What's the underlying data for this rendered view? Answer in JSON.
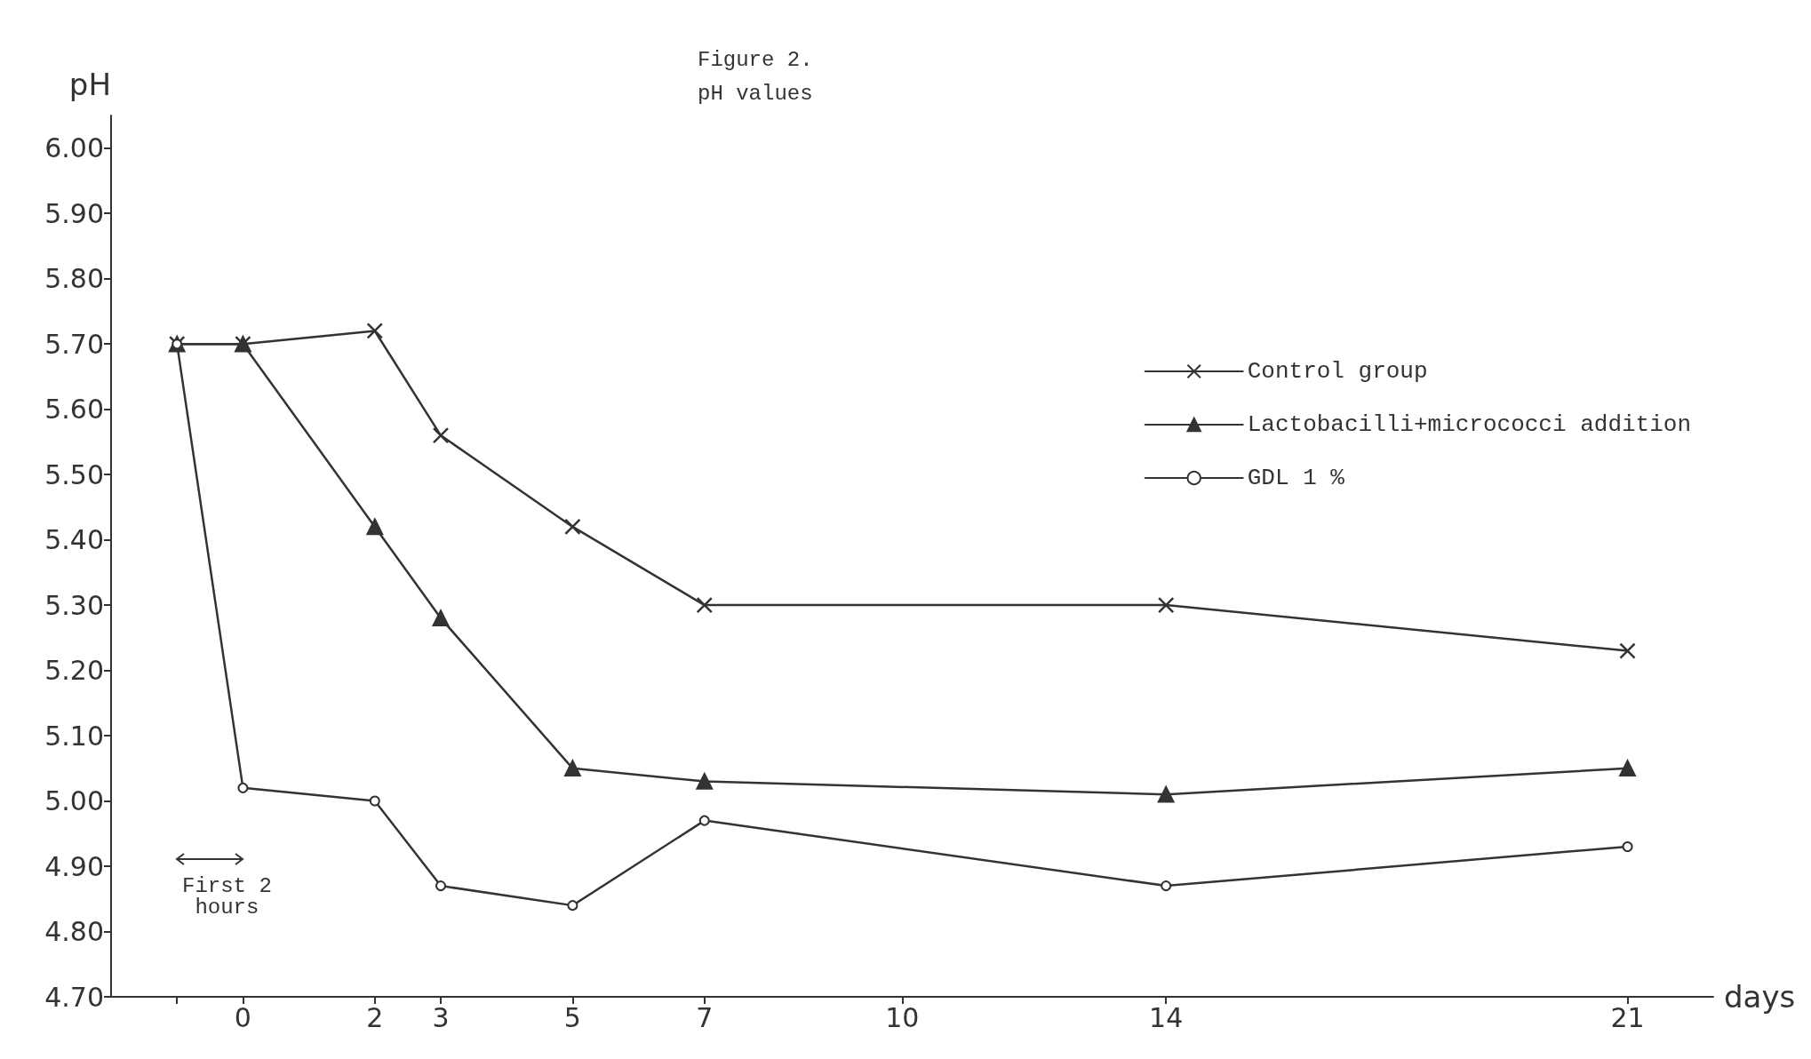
{
  "chart_data": {
    "type": "line",
    "title": "Figure 2.",
    "subtitle": "pH values",
    "xlabel": "days",
    "ylabel": "pH",
    "x": [
      -1,
      0,
      2,
      3,
      5,
      7,
      14,
      21
    ],
    "series": [
      {
        "name": "Control group",
        "color": "#333333",
        "marker": "cross",
        "values": [
          5.7,
          5.7,
          5.72,
          5.56,
          5.42,
          5.3,
          5.3,
          5.23
        ]
      },
      {
        "name": "Lactobacilli+micrococci addition",
        "color": "#333333",
        "marker": "triangle",
        "values": [
          5.7,
          5.7,
          5.42,
          5.28,
          5.05,
          5.03,
          5.01,
          5.05
        ]
      },
      {
        "name": "GDL 1 %",
        "color": "#333333",
        "marker": "circle",
        "values": [
          5.7,
          5.02,
          5.0,
          4.87,
          4.84,
          4.97,
          4.87,
          4.93
        ]
      }
    ],
    "xlim": [
      -2,
      22.3
    ],
    "xticks": [
      {
        "value": -1,
        "label": null
      },
      0,
      2,
      3,
      5,
      7,
      10,
      14,
      21
    ],
    "ylim": [
      4.7,
      6.05
    ],
    "yticks": [
      {
        "value": 4.7,
        "label": "4.70"
      },
      {
        "value": 4.8,
        "label": "4.80"
      },
      {
        "value": 4.9,
        "label": "4.90"
      },
      {
        "value": 5.0,
        "label": "5.00"
      },
      {
        "value": 5.1,
        "label": "5.10"
      },
      {
        "value": 5.2,
        "label": "5.20"
      },
      {
        "value": 5.3,
        "label": "5.30"
      },
      {
        "value": 5.4,
        "label": "5.40"
      },
      {
        "value": 5.5,
        "label": "5.50"
      },
      {
        "value": 5.6,
        "label": "5.60"
      },
      {
        "value": 5.7,
        "label": "5.70"
      },
      {
        "value": 5.8,
        "label": "5.80"
      },
      {
        "value": 5.9,
        "label": "5.90"
      },
      {
        "value": 6.0,
        "label": "6.00"
      }
    ],
    "annotations": [
      "First 2 hours"
    ],
    "grid": false,
    "legend": "right",
    "line_style": "solid"
  }
}
